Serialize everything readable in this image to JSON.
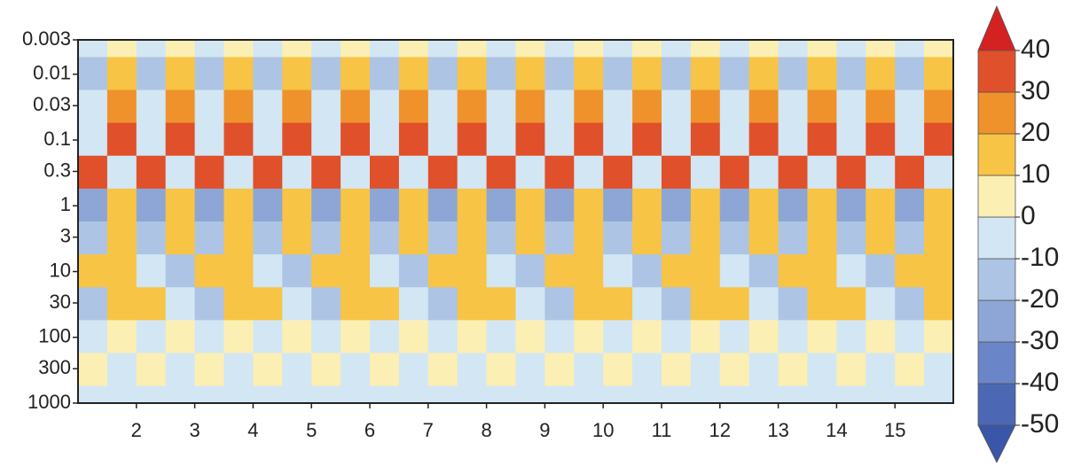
{
  "chart_data": {
    "type": "contour",
    "xlim": [
      1,
      16
    ],
    "xticks": [
      2,
      3,
      4,
      5,
      6,
      7,
      8,
      9,
      10,
      11,
      12,
      13,
      14,
      15
    ],
    "ylim": [
      0.003,
      1000
    ],
    "yticks": [
      0.003,
      0.01,
      0.03,
      0.1,
      0.3,
      1,
      3,
      10,
      30,
      100,
      300,
      1000
    ],
    "y_scale": "log",
    "y_reversed": true,
    "x": [
      1.25,
      1.75,
      2.25,
      2.75,
      3.25,
      3.75,
      4.25,
      4.75,
      5.25,
      5.75,
      6.25,
      6.75,
      7.25,
      7.75,
      8.25,
      8.75,
      9.25,
      9.75,
      10.25,
      10.75,
      11.25,
      11.75,
      12.25,
      12.75,
      13.25,
      13.75,
      14.25,
      14.75,
      15.25,
      15.75
    ],
    "y": [
      0.003,
      0.01,
      0.03,
      0.1,
      0.3,
      1,
      3,
      10,
      30,
      100,
      300,
      1000
    ],
    "z": [
      [
        -10,
        0,
        -10,
        0,
        -10,
        0,
        -10,
        0,
        -10,
        0,
        -10,
        0,
        -10,
        0,
        -10,
        0,
        -10,
        0,
        -10,
        0,
        -10,
        0,
        -10,
        0,
        -10,
        0,
        -10,
        0,
        -10,
        0
      ],
      [
        -20,
        10,
        -20,
        10,
        -20,
        10,
        -20,
        10,
        -20,
        10,
        -20,
        10,
        -20,
        10,
        -20,
        10,
        -20,
        10,
        -20,
        10,
        -20,
        10,
        -20,
        10,
        -20,
        10,
        -20,
        10,
        -20,
        10
      ],
      [
        -10,
        20,
        -10,
        20,
        -10,
        20,
        -10,
        20,
        -10,
        20,
        -10,
        20,
        -10,
        20,
        -10,
        20,
        -10,
        20,
        -10,
        20,
        -10,
        20,
        -10,
        20,
        -10,
        20,
        -10,
        20,
        -10,
        20
      ],
      [
        -10,
        30,
        -10,
        30,
        -10,
        30,
        -10,
        30,
        -10,
        30,
        -10,
        30,
        -10,
        30,
        -10,
        30,
        -10,
        30,
        -10,
        30,
        -10,
        30,
        -10,
        30,
        -10,
        30,
        -10,
        30,
        -10,
        30
      ],
      [
        30,
        -10,
        30,
        -10,
        30,
        -10,
        30,
        -10,
        30,
        -10,
        30,
        -10,
        30,
        -10,
        30,
        -10,
        30,
        -10,
        30,
        -10,
        30,
        -10,
        30,
        -10,
        30,
        -10,
        30,
        -10,
        30,
        -10
      ],
      [
        -30,
        10,
        -30,
        10,
        -30,
        10,
        -30,
        10,
        -30,
        10,
        -30,
        10,
        -30,
        10,
        -30,
        10,
        -30,
        10,
        -30,
        10,
        -30,
        10,
        -30,
        10,
        -30,
        10,
        -30,
        10,
        -30,
        10
      ],
      [
        -20,
        10,
        -20,
        10,
        -20,
        10,
        -20,
        10,
        -20,
        10,
        -20,
        10,
        -20,
        10,
        -20,
        10,
        -20,
        10,
        -20,
        10,
        -20,
        10,
        -20,
        10,
        -20,
        10,
        -20,
        10,
        -20,
        10
      ],
      [
        10,
        10,
        -10,
        -20,
        10,
        10,
        -10,
        -20,
        10,
        10,
        -10,
        -20,
        10,
        10,
        -10,
        -20,
        10,
        10,
        -10,
        -20,
        10,
        10,
        -10,
        -20,
        10,
        10,
        -10,
        -20,
        10,
        10
      ],
      [
        -20,
        10,
        10,
        -10,
        -20,
        10,
        10,
        -10,
        -20,
        10,
        10,
        -10,
        -20,
        10,
        10,
        -10,
        -20,
        10,
        10,
        -10,
        -20,
        10,
        10,
        -10,
        -20,
        10,
        10,
        -10,
        -20,
        10
      ],
      [
        -10,
        0,
        -10,
        0,
        -10,
        0,
        -10,
        0,
        -10,
        0,
        -10,
        0,
        -10,
        0,
        -10,
        0,
        -10,
        0,
        -10,
        0,
        -10,
        0,
        -10,
        0,
        -10,
        0,
        -10,
        0,
        -10,
        0
      ],
      [
        0,
        -10,
        0,
        -10,
        0,
        -10,
        0,
        -10,
        0,
        -10,
        0,
        -10,
        0,
        -10,
        0,
        -10,
        0,
        -10,
        0,
        -10,
        0,
        -10,
        0,
        -10,
        0,
        -10,
        0,
        -10,
        0,
        -10
      ],
      [
        -10,
        -10,
        -10,
        -10,
        -10,
        -10,
        -10,
        -10,
        -10,
        -10,
        -10,
        -10,
        -10,
        -10,
        -10,
        -10,
        -10,
        -10,
        -10,
        -10,
        -10,
        -10,
        -10,
        -10,
        -10,
        -10,
        -10,
        -10,
        -10,
        -10
      ]
    ],
    "colorbar": {
      "levels": [
        -50,
        -40,
        -30,
        -20,
        -10,
        0,
        10,
        20,
        30,
        40
      ],
      "colors": [
        "#4c67b4",
        "#6b86c8",
        "#8ea6d6",
        "#aec4e4",
        "#d3e6f3",
        "#fbefb4",
        "#f7c445",
        "#f0922b",
        "#e0502b"
      ],
      "under_color": "#3a56a8",
      "over_color": "#d42222"
    }
  }
}
